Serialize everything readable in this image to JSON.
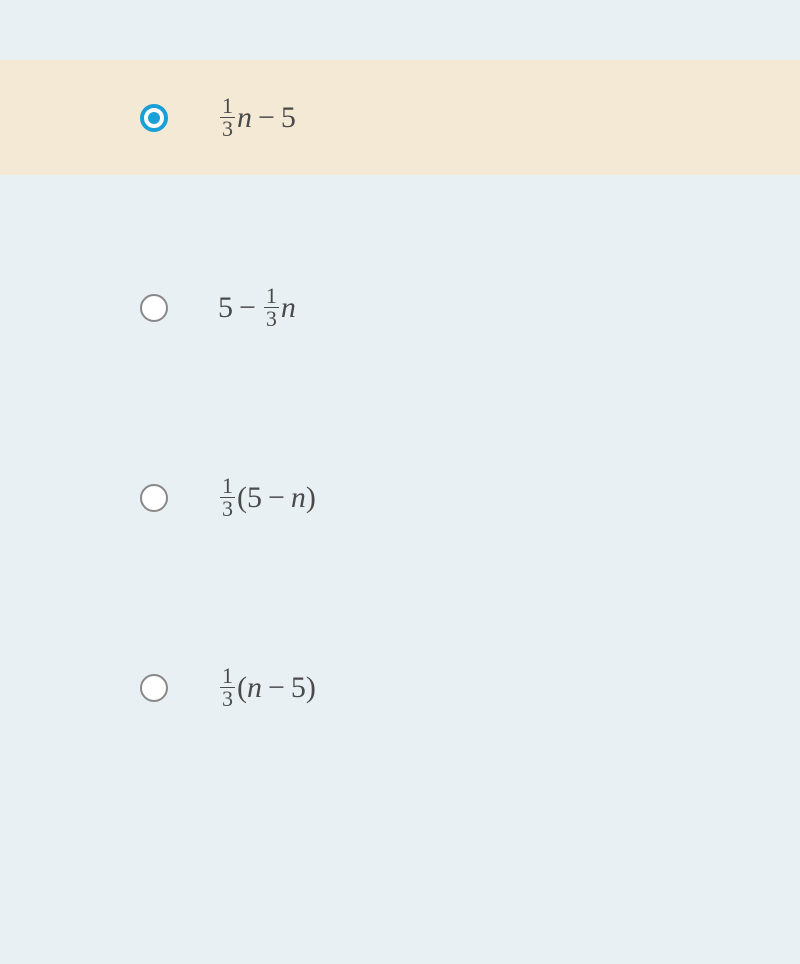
{
  "colors": {
    "background": "#e8f0f4",
    "selected_bg": "#f4e9d5",
    "radio_checked": "#1a9fd6",
    "radio_border": "#888888",
    "text": "#4a4a4a"
  },
  "selected_index": 0,
  "options": [
    {
      "id": "option-a",
      "selected": true,
      "expression_parts": [
        {
          "type": "fraction",
          "num": "1",
          "den": "3"
        },
        {
          "type": "var",
          "text": "n"
        },
        {
          "type": "op",
          "text": "−"
        },
        {
          "type": "num",
          "text": "5"
        }
      ]
    },
    {
      "id": "option-b",
      "selected": false,
      "expression_parts": [
        {
          "type": "num",
          "text": "5"
        },
        {
          "type": "op",
          "text": "−"
        },
        {
          "type": "fraction",
          "num": "1",
          "den": "3"
        },
        {
          "type": "var",
          "text": "n"
        }
      ]
    },
    {
      "id": "option-c",
      "selected": false,
      "expression_parts": [
        {
          "type": "fraction",
          "num": "1",
          "den": "3"
        },
        {
          "type": "paren",
          "text": "("
        },
        {
          "type": "num",
          "text": "5"
        },
        {
          "type": "op",
          "text": "−"
        },
        {
          "type": "var",
          "text": "n"
        },
        {
          "type": "paren",
          "text": ")"
        }
      ]
    },
    {
      "id": "option-d",
      "selected": false,
      "expression_parts": [
        {
          "type": "fraction",
          "num": "1",
          "den": "3"
        },
        {
          "type": "paren",
          "text": "("
        },
        {
          "type": "var",
          "text": "n"
        },
        {
          "type": "op",
          "text": "−"
        },
        {
          "type": "num",
          "text": "5"
        },
        {
          "type": "paren",
          "text": ")"
        }
      ]
    }
  ]
}
